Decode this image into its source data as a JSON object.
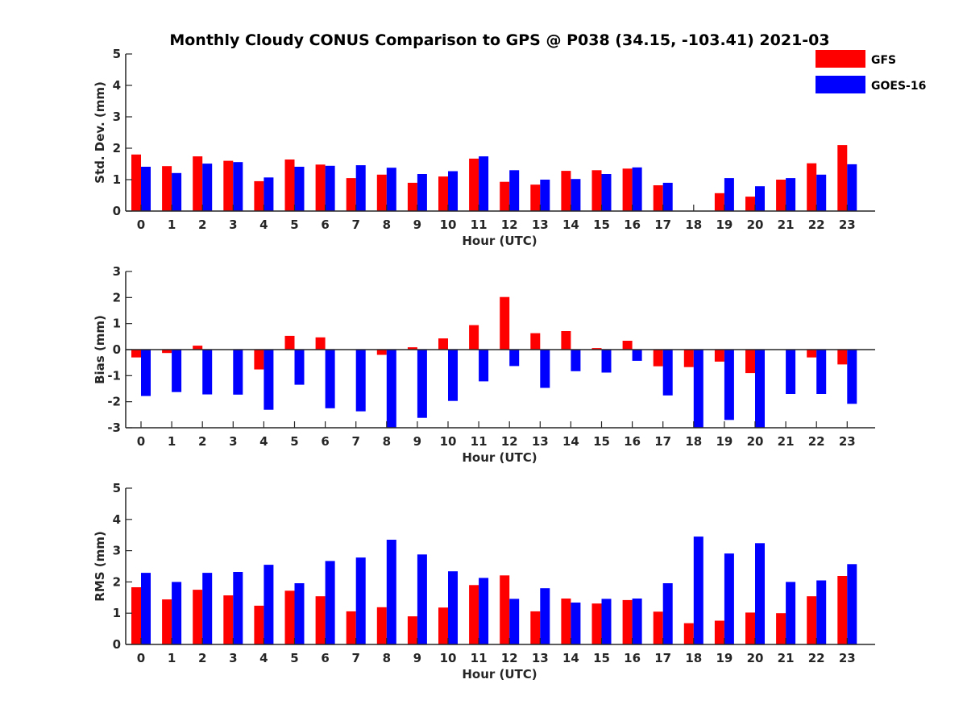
{
  "title": "Monthly Cloudy CONUS Comparison to GPS @ P038 (34.15, -103.41) 2021-03",
  "legend": [
    {
      "name": "GFS",
      "color": "#ff0000"
    },
    {
      "name": "GOES-16",
      "color": "#0000ff"
    }
  ],
  "chart_data": [
    {
      "type": "bar",
      "xlabel": "Hour (UTC)",
      "ylabel": "Std. Dev. (mm)",
      "ylim": [
        0,
        5
      ],
      "yticks": [
        0,
        1,
        2,
        3,
        4,
        5
      ],
      "categories": [
        "0",
        "1",
        "2",
        "3",
        "4",
        "5",
        "6",
        "7",
        "8",
        "9",
        "10",
        "11",
        "12",
        "13",
        "14",
        "15",
        "16",
        "17",
        "18",
        "19",
        "20",
        "21",
        "22",
        "23"
      ],
      "series": [
        {
          "name": "GFS",
          "color": "#ff0000",
          "values": [
            1.8,
            1.43,
            1.74,
            1.6,
            0.95,
            1.64,
            1.48,
            1.05,
            1.16,
            0.9,
            1.1,
            1.67,
            0.93,
            0.84,
            1.28,
            1.3,
            1.35,
            0.82,
            null,
            0.57,
            0.46,
            1.0,
            1.52,
            2.1
          ]
        },
        {
          "name": "GOES-16",
          "color": "#0000ff",
          "values": [
            1.41,
            1.21,
            1.51,
            1.56,
            1.07,
            1.41,
            1.44,
            1.46,
            1.38,
            1.18,
            1.27,
            1.74,
            1.3,
            1.0,
            1.02,
            1.18,
            1.39,
            0.9,
            null,
            1.05,
            0.79,
            1.05,
            1.16,
            1.49
          ]
        }
      ]
    },
    {
      "type": "bar",
      "xlabel": "Hour (UTC)",
      "ylabel": "Bias (mm)",
      "ylim": [
        -3,
        3
      ],
      "yticks": [
        -3,
        -2,
        -1,
        0,
        1,
        2,
        3
      ],
      "categories": [
        "0",
        "1",
        "2",
        "3",
        "4",
        "5",
        "6",
        "7",
        "8",
        "9",
        "10",
        "11",
        "12",
        "13",
        "14",
        "15",
        "16",
        "17",
        "18",
        "19",
        "20",
        "21",
        "22",
        "23"
      ],
      "series": [
        {
          "name": "GFS",
          "color": "#ff0000",
          "values": [
            -0.3,
            -0.13,
            0.15,
            0.0,
            -0.76,
            0.53,
            0.47,
            0.0,
            -0.2,
            0.09,
            0.43,
            0.94,
            2.02,
            0.63,
            0.71,
            0.06,
            0.34,
            -0.64,
            -0.67,
            -0.46,
            -0.9,
            0.0,
            -0.3,
            -0.57
          ]
        },
        {
          "name": "GOES-16",
          "color": "#0000ff",
          "values": [
            -1.78,
            -1.63,
            -1.72,
            -1.73,
            -2.31,
            -1.35,
            -2.25,
            -2.37,
            -3.0,
            -2.62,
            -1.97,
            -1.22,
            -0.63,
            -1.47,
            -0.83,
            -0.88,
            -0.43,
            -1.76,
            -3.0,
            -2.7,
            -3.0,
            -1.7,
            -1.7,
            -2.08
          ]
        }
      ]
    },
    {
      "type": "bar",
      "xlabel": "Hour (UTC)",
      "ylabel": "RMS (mm)",
      "ylim": [
        0,
        5
      ],
      "yticks": [
        0,
        1,
        2,
        3,
        4,
        5
      ],
      "categories": [
        "0",
        "1",
        "2",
        "3",
        "4",
        "5",
        "6",
        "7",
        "8",
        "9",
        "10",
        "11",
        "12",
        "13",
        "14",
        "15",
        "16",
        "17",
        "18",
        "19",
        "20",
        "21",
        "22",
        "23"
      ],
      "series": [
        {
          "name": "GFS",
          "color": "#ff0000",
          "values": [
            1.83,
            1.44,
            1.75,
            1.57,
            1.24,
            1.72,
            1.54,
            1.06,
            1.19,
            0.9,
            1.18,
            1.9,
            2.21,
            1.06,
            1.47,
            1.31,
            1.42,
            1.05,
            0.68,
            0.76,
            1.02,
            1.0,
            1.54,
            2.19
          ]
        },
        {
          "name": "GOES-16",
          "color": "#0000ff",
          "values": [
            2.29,
            2.0,
            2.29,
            2.32,
            2.55,
            1.96,
            2.67,
            2.78,
            3.35,
            2.88,
            2.34,
            2.13,
            1.46,
            1.8,
            1.34,
            1.46,
            1.47,
            1.96,
            3.45,
            2.91,
            3.24,
            2.0,
            2.05,
            2.57
          ]
        }
      ]
    }
  ]
}
